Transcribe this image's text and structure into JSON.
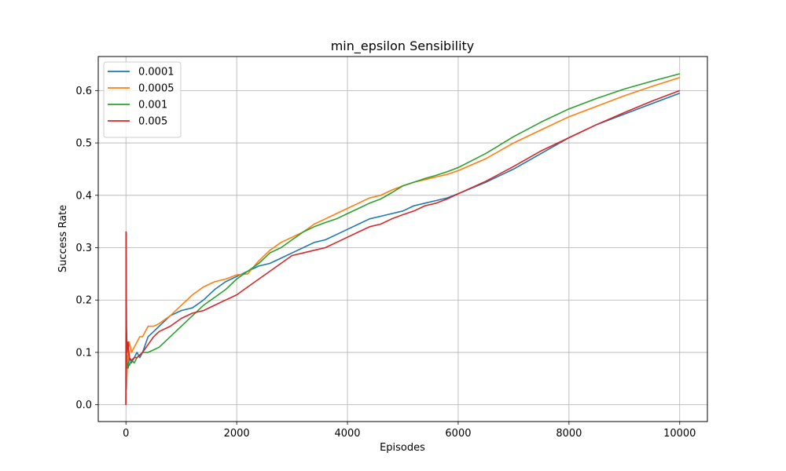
{
  "chart_data": {
    "type": "line",
    "title": "min_epsilon Sensibility",
    "xlabel": "Episodes",
    "ylabel": "Success Rate",
    "xlim": [
      -500,
      10500
    ],
    "ylim": [
      -0.032,
      0.665
    ],
    "xticks": [
      0,
      2000,
      4000,
      6000,
      8000,
      10000
    ],
    "xtick_labels": [
      "0",
      "2000",
      "4000",
      "6000",
      "8000",
      "10000"
    ],
    "yticks": [
      0.0,
      0.1,
      0.2,
      0.3,
      0.4,
      0.5,
      0.6
    ],
    "ytick_labels": [
      "0.0",
      "0.1",
      "0.2",
      "0.3",
      "0.4",
      "0.5",
      "0.6"
    ],
    "grid": true,
    "legend_position": "upper-left",
    "series": [
      {
        "name": "0.0001",
        "color": "#1f77b4",
        "x": [
          0,
          2,
          5,
          10,
          20,
          40,
          60,
          100,
          150,
          200,
          250,
          300,
          400,
          500,
          600,
          800,
          1000,
          1200,
          1400,
          1600,
          1800,
          2000,
          2200,
          2400,
          2600,
          2800,
          3000,
          3200,
          3400,
          3600,
          3800,
          4000,
          4200,
          4400,
          4600,
          4800,
          5000,
          5200,
          5400,
          5600,
          5800,
          6000,
          6500,
          7000,
          7500,
          8000,
          8500,
          9000,
          9500,
          10000
        ],
        "y": [
          0.0,
          0.33,
          0.2,
          0.1,
          0.08,
          0.07,
          0.09,
          0.08,
          0.09,
          0.1,
          0.09,
          0.1,
          0.13,
          0.14,
          0.15,
          0.17,
          0.18,
          0.185,
          0.2,
          0.22,
          0.235,
          0.245,
          0.255,
          0.265,
          0.27,
          0.28,
          0.29,
          0.3,
          0.31,
          0.315,
          0.325,
          0.335,
          0.345,
          0.355,
          0.36,
          0.365,
          0.37,
          0.38,
          0.385,
          0.39,
          0.395,
          0.403,
          0.425,
          0.45,
          0.48,
          0.51,
          0.535,
          0.555,
          0.575,
          0.595
        ]
      },
      {
        "name": "0.0005",
        "color": "#ff7f0e",
        "x": [
          0,
          2,
          5,
          10,
          20,
          40,
          60,
          100,
          150,
          200,
          250,
          300,
          400,
          500,
          600,
          800,
          1000,
          1200,
          1400,
          1600,
          1800,
          2000,
          2200,
          2400,
          2600,
          2800,
          3000,
          3200,
          3400,
          3600,
          3800,
          4000,
          4200,
          4400,
          4600,
          4800,
          5000,
          5200,
          5400,
          5600,
          5800,
          6000,
          6500,
          7000,
          7500,
          8000,
          8500,
          9000,
          9500,
          10000
        ],
        "y": [
          0.0,
          0.25,
          0.1,
          0.03,
          0.06,
          0.1,
          0.12,
          0.1,
          0.11,
          0.12,
          0.13,
          0.13,
          0.15,
          0.15,
          0.155,
          0.17,
          0.19,
          0.21,
          0.225,
          0.235,
          0.24,
          0.248,
          0.25,
          0.275,
          0.295,
          0.31,
          0.32,
          0.33,
          0.345,
          0.355,
          0.365,
          0.375,
          0.385,
          0.395,
          0.4,
          0.41,
          0.418,
          0.425,
          0.43,
          0.435,
          0.44,
          0.447,
          0.47,
          0.5,
          0.525,
          0.55,
          0.57,
          0.59,
          0.608,
          0.625
        ]
      },
      {
        "name": "0.001",
        "color": "#2ca02c",
        "x": [
          0,
          2,
          5,
          10,
          20,
          40,
          60,
          100,
          150,
          200,
          250,
          300,
          400,
          500,
          600,
          800,
          1000,
          1200,
          1400,
          1600,
          1800,
          2000,
          2200,
          2400,
          2600,
          2800,
          3000,
          3200,
          3400,
          3600,
          3800,
          4000,
          4200,
          4400,
          4600,
          4800,
          5000,
          5200,
          5400,
          5600,
          5800,
          6000,
          6500,
          7000,
          7500,
          8000,
          8500,
          9000,
          9500,
          10000
        ],
        "y": [
          0.0,
          0.33,
          0.15,
          0.09,
          0.07,
          0.08,
          0.075,
          0.085,
          0.08,
          0.09,
          0.095,
          0.1,
          0.1,
          0.105,
          0.11,
          0.13,
          0.15,
          0.17,
          0.19,
          0.205,
          0.22,
          0.24,
          0.255,
          0.27,
          0.29,
          0.3,
          0.315,
          0.33,
          0.34,
          0.348,
          0.355,
          0.365,
          0.375,
          0.385,
          0.393,
          0.405,
          0.418,
          0.425,
          0.432,
          0.438,
          0.445,
          0.453,
          0.48,
          0.512,
          0.54,
          0.565,
          0.585,
          0.603,
          0.618,
          0.632
        ]
      },
      {
        "name": "0.005",
        "color": "#d62728",
        "x": [
          0,
          2,
          5,
          10,
          20,
          40,
          60,
          100,
          150,
          200,
          250,
          300,
          400,
          500,
          600,
          800,
          1000,
          1200,
          1400,
          1600,
          1800,
          2000,
          2200,
          2400,
          2600,
          2800,
          3000,
          3200,
          3400,
          3600,
          3800,
          4000,
          4200,
          4400,
          4600,
          4800,
          5000,
          5200,
          5400,
          5600,
          5800,
          6000,
          6500,
          7000,
          7500,
          8000,
          8500,
          9000,
          9500,
          10000
        ],
        "y": [
          0.0,
          0.33,
          0.25,
          0.15,
          0.1,
          0.12,
          0.09,
          0.085,
          0.09,
          0.09,
          0.095,
          0.1,
          0.115,
          0.13,
          0.14,
          0.15,
          0.165,
          0.175,
          0.18,
          0.19,
          0.2,
          0.21,
          0.225,
          0.24,
          0.255,
          0.27,
          0.285,
          0.29,
          0.295,
          0.3,
          0.31,
          0.32,
          0.33,
          0.34,
          0.345,
          0.355,
          0.363,
          0.37,
          0.38,
          0.385,
          0.393,
          0.403,
          0.427,
          0.455,
          0.485,
          0.51,
          0.535,
          0.558,
          0.58,
          0.6
        ]
      }
    ]
  }
}
